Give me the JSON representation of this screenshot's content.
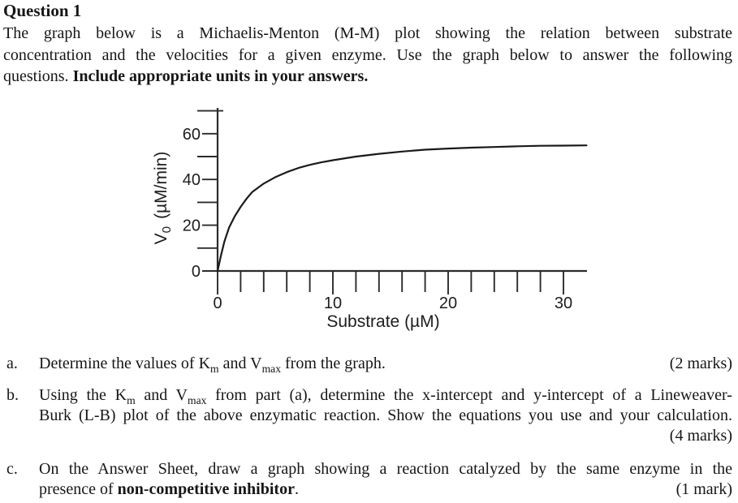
{
  "page": {
    "background": "#ffffff",
    "text_color": "#161616"
  },
  "header": {
    "title": "Question 1"
  },
  "intro": {
    "line1": "The graph below is a Michaelis-Menton (M-M) plot showing the relation between substrate",
    "line2": "concentration and the velocities for a given enzyme. Use the graph below to answer the following",
    "line3_normal": "questions. ",
    "line3_bold": "Include appropriate units in your answers."
  },
  "chart_data": {
    "type": "line",
    "title": "",
    "xlabel": "Substrate (µM)",
    "ylabel": "V0 (µM/min)",
    "ylabel_parts": {
      "base": "V",
      "sub": "0",
      "units": "(µM/min)"
    },
    "x_range": [
      0,
      32
    ],
    "y_range": [
      0,
      70
    ],
    "x_tick_step": 2,
    "x_tick_max": 30,
    "y_tick_step": 10,
    "x_tick_labels": [
      0,
      10,
      20,
      30
    ],
    "y_tick_labels": [
      0,
      20,
      40,
      60
    ],
    "grid": false,
    "legend": "none",
    "axis_color": "#2b2b2b",
    "series": [
      {
        "name": "initial-velocity-curve",
        "color": "#1a1a1a",
        "points": [
          [
            0,
            0
          ],
          [
            0.3,
            7
          ],
          [
            0.6,
            13
          ],
          [
            1,
            19
          ],
          [
            1.5,
            24
          ],
          [
            2,
            28
          ],
          [
            2.5,
            31.5
          ],
          [
            3,
            34.5
          ],
          [
            4,
            38.2
          ],
          [
            5,
            41
          ],
          [
            6,
            43.2
          ],
          [
            7,
            45
          ],
          [
            8,
            46.4
          ],
          [
            9,
            47.5
          ],
          [
            10,
            48.4
          ],
          [
            12,
            50
          ],
          [
            14,
            51.2
          ],
          [
            16,
            52.2
          ],
          [
            18,
            53
          ],
          [
            20,
            53.5
          ],
          [
            22,
            53.9
          ],
          [
            24,
            54.2
          ],
          [
            26,
            54.5
          ],
          [
            28,
            54.7
          ],
          [
            30,
            54.8
          ],
          [
            32,
            54.9
          ]
        ]
      }
    ]
  },
  "questions": [
    {
      "marker": "a.",
      "t1": "Determine the values of K",
      "sub1": "m",
      "t2": " and V",
      "sub2": "max",
      "t3": " from the graph.",
      "marks": "(2 marks)"
    },
    {
      "marker": "b.",
      "l1_t1": "Using the K",
      "l1_sub1": "m",
      "l1_t2": " and V",
      "l1_sub2": "max",
      "l1_t3": " from part (a), determine the x-intercept and y-intercept of a Lineweaver-",
      "l2": "Burk (L-B) plot of the above enzymatic reaction. Show the equations you use and your calculation.",
      "marks": "(4 marks)"
    },
    {
      "marker": "c.",
      "l1": "On the Answer Sheet, draw a graph showing a reaction catalyzed by the same enzyme in the",
      "l2_normal": "presence of ",
      "l2_bold": "non-competitive inhibitor",
      "l2_end": ".",
      "marks": "(1 mark)"
    }
  ]
}
